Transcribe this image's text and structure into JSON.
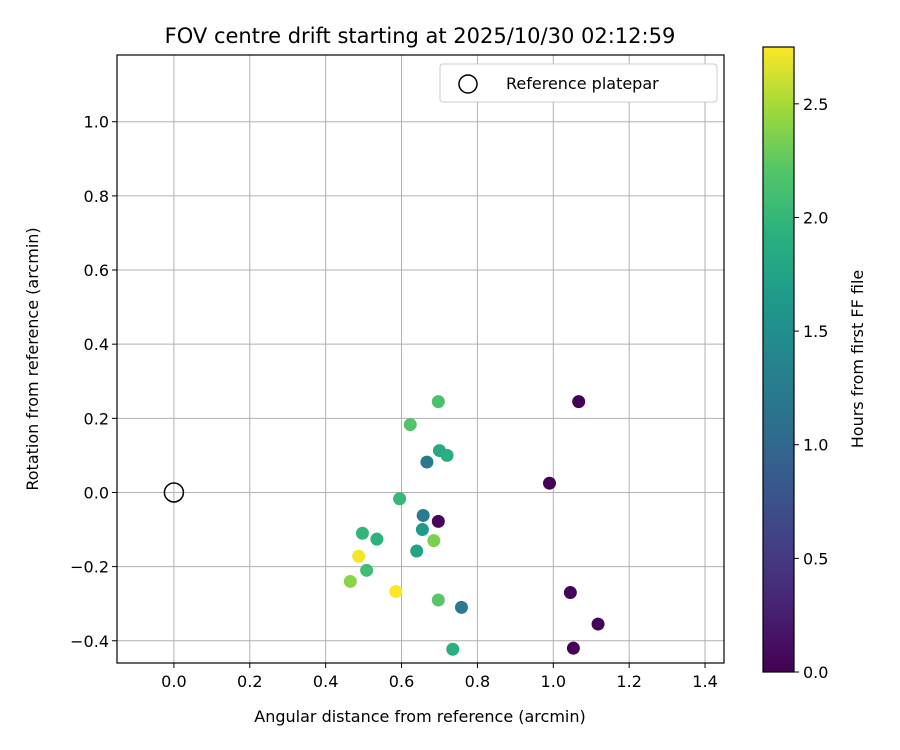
{
  "chart_data": {
    "type": "scatter",
    "title": "FOV centre drift starting at 2025/10/30 02:12:59",
    "xlabel": "Angular distance from reference (arcmin)",
    "ylabel": "Rotation from reference (arcmin)",
    "xlim": [
      -0.15,
      1.45
    ],
    "ylim": [
      -0.46,
      1.18
    ],
    "xticks": [
      "0.0",
      "0.2",
      "0.4",
      "0.6",
      "0.8",
      "1.0",
      "1.2",
      "1.4"
    ],
    "xtick_values": [
      0.0,
      0.2,
      0.4,
      0.6,
      0.8,
      1.0,
      1.2,
      1.4
    ],
    "yticks": [
      "−0.4",
      "−0.2",
      "0.0",
      "0.2",
      "0.4",
      "0.6",
      "0.8",
      "1.0"
    ],
    "ytick_values": [
      -0.4,
      -0.2,
      0.0,
      0.2,
      0.4,
      0.6,
      0.8,
      1.0
    ],
    "grid": true,
    "legend": {
      "location": "top-right",
      "entries": [
        "Reference platepar"
      ]
    },
    "reference": {
      "name": "Reference platepar",
      "x": 0.0,
      "y": 0.0,
      "marker": "open-circle",
      "color": "#000000"
    },
    "colorbar": {
      "label": "Hours from first FF file",
      "range": [
        0.0,
        2.75
      ],
      "ticks": [
        "0.0",
        "0.5",
        "1.0",
        "1.5",
        "2.0",
        "2.5"
      ],
      "tick_values": [
        0.0,
        0.5,
        1.0,
        1.5,
        2.0,
        2.5
      ],
      "colormap": "viridis"
    },
    "points": [
      {
        "x": 1.067,
        "y": 0.245,
        "hours": 0.0
      },
      {
        "x": 0.99,
        "y": 0.025,
        "hours": 0.02
      },
      {
        "x": 0.697,
        "y": -0.078,
        "hours": 0.05
      },
      {
        "x": 1.045,
        "y": -0.27,
        "hours": 0.03
      },
      {
        "x": 1.118,
        "y": -0.355,
        "hours": 0.04
      },
      {
        "x": 1.053,
        "y": -0.42,
        "hours": 0.02
      },
      {
        "x": 0.667,
        "y": 0.082,
        "hours": 1.2
      },
      {
        "x": 0.657,
        "y": -0.062,
        "hours": 1.25
      },
      {
        "x": 0.758,
        "y": -0.31,
        "hours": 1.25
      },
      {
        "x": 0.655,
        "y": -0.1,
        "hours": 1.65
      },
      {
        "x": 0.64,
        "y": -0.158,
        "hours": 1.75
      },
      {
        "x": 0.7,
        "y": 0.113,
        "hours": 1.85
      },
      {
        "x": 0.72,
        "y": 0.1,
        "hours": 1.9
      },
      {
        "x": 0.735,
        "y": -0.423,
        "hours": 1.92
      },
      {
        "x": 0.535,
        "y": -0.126,
        "hours": 1.95
      },
      {
        "x": 0.497,
        "y": -0.11,
        "hours": 2.0
      },
      {
        "x": 0.595,
        "y": -0.017,
        "hours": 2.02
      },
      {
        "x": 0.508,
        "y": -0.21,
        "hours": 2.08
      },
      {
        "x": 0.697,
        "y": 0.245,
        "hours": 2.15
      },
      {
        "x": 0.623,
        "y": 0.183,
        "hours": 2.2
      },
      {
        "x": 0.697,
        "y": -0.29,
        "hours": 2.22
      },
      {
        "x": 0.685,
        "y": -0.13,
        "hours": 2.35
      },
      {
        "x": 0.465,
        "y": -0.24,
        "hours": 2.4
      },
      {
        "x": 0.487,
        "y": -0.172,
        "hours": 2.72
      },
      {
        "x": 0.585,
        "y": -0.267,
        "hours": 2.75
      }
    ]
  }
}
